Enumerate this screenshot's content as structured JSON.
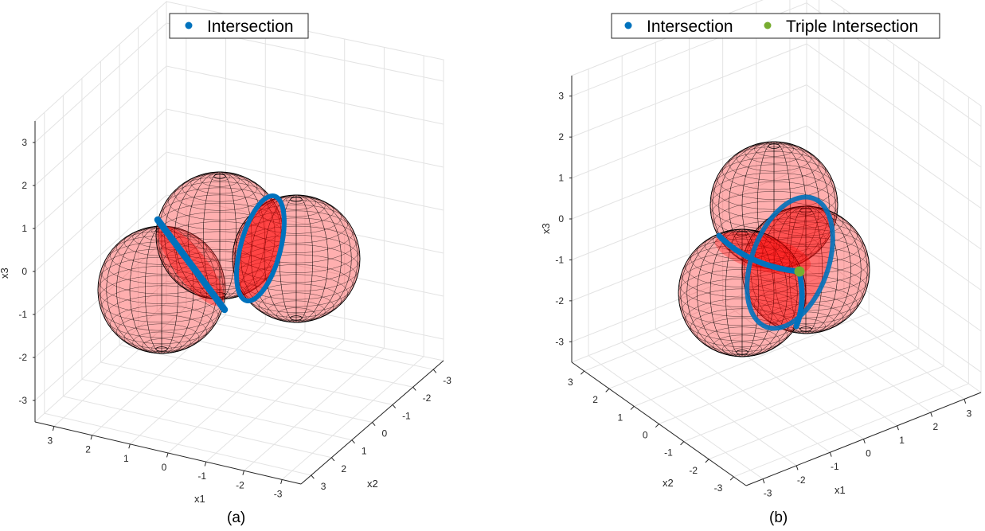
{
  "chart_data": [
    {
      "type": "3d-surface",
      "panel_label": "(a)",
      "xlabel": "x1",
      "ylabel": "x2",
      "zlabel": "x3",
      "x_ticks": [
        "3",
        "2",
        "1",
        "0",
        "-1",
        "-2",
        "-3"
      ],
      "y_ticks": [
        "-3",
        "-2",
        "-1",
        "0",
        "1",
        "2",
        "3"
      ],
      "z_ticks": [
        "3",
        "2",
        "1",
        "0",
        "-1",
        "-2",
        "-3"
      ],
      "xlim": [
        -3.5,
        3.5
      ],
      "ylim": [
        -3.5,
        3.5
      ],
      "zlim": [
        -3.5,
        3.5
      ],
      "grid": true,
      "legend": {
        "placement": "top-center",
        "entries": [
          {
            "label": "Intersection",
            "color": "#0072BD"
          }
        ]
      },
      "series": [
        {
          "name": "Sphere 1",
          "kind": "sphere",
          "center_view": [
            -1.9,
            -0.2
          ],
          "radius": 1.45,
          "color": "#ff0000"
        },
        {
          "name": "Sphere 2",
          "kind": "sphere",
          "center_view": [
            -0.2,
            0.45
          ],
          "radius": 1.45,
          "color": "#ff0000"
        },
        {
          "name": "Sphere 3",
          "kind": "sphere",
          "center_view": [
            1.6,
            0.3
          ],
          "radius": 1.45,
          "color": "#ff0000"
        },
        {
          "name": "Intersection",
          "kind": "circle",
          "color": "#0072BD"
        }
      ]
    },
    {
      "type": "3d-surface",
      "panel_label": "(b)",
      "xlabel": "x1",
      "ylabel": "x2",
      "zlabel": "x3",
      "x_ticks": [
        "-3",
        "-2",
        "-1",
        "0",
        "1",
        "2",
        "3"
      ],
      "y_ticks": [
        "3",
        "2",
        "1",
        "0",
        "-1",
        "-2",
        "-3"
      ],
      "z_ticks": [
        "3",
        "2",
        "1",
        "0",
        "-1",
        "-2",
        "-3"
      ],
      "xlim": [
        -3.5,
        3.5
      ],
      "ylim": [
        -3.5,
        3.5
      ],
      "zlim": [
        -3.5,
        3.5
      ],
      "grid": true,
      "legend": {
        "placement": "top-right",
        "entries": [
          {
            "label": "Intersection",
            "color": "#0072BD"
          },
          {
            "label": "Triple Intersection",
            "color": "#77AC30"
          }
        ]
      },
      "series": [
        {
          "name": "Sphere 1",
          "kind": "sphere",
          "color": "#ff0000"
        },
        {
          "name": "Sphere 2",
          "kind": "sphere",
          "color": "#ff0000"
        },
        {
          "name": "Sphere 3",
          "kind": "sphere",
          "color": "#ff0000"
        },
        {
          "name": "Intersection",
          "kind": "circle",
          "color": "#0072BD"
        },
        {
          "name": "Triple Intersection",
          "kind": "point",
          "color": "#77AC30"
        }
      ]
    }
  ]
}
